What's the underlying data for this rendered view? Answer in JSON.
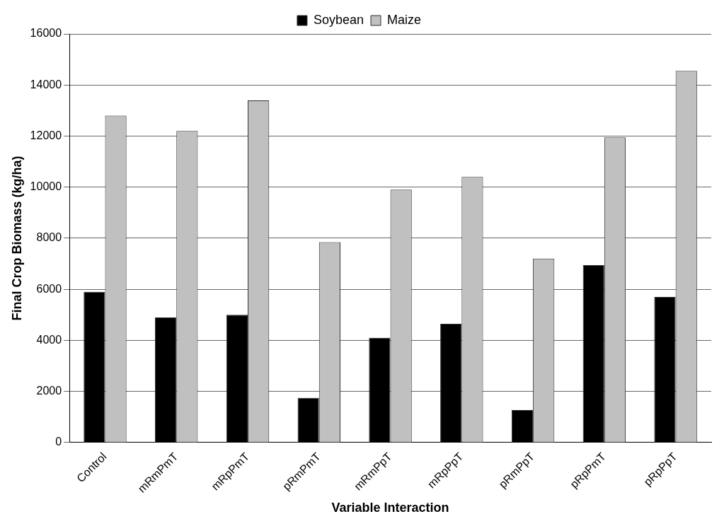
{
  "chart_data": {
    "type": "bar",
    "xlabel": "Variable Interaction",
    "ylabel": "Final Crop Biomass (kg/ha)",
    "categories": [
      "Control",
      "mRmPmT",
      "mRpPmT",
      "pRmPmT",
      "mRmPpT",
      "mRpPpT",
      "pRmPpT",
      "pRpPmT",
      "pRpPpT"
    ],
    "series": [
      {
        "name": "Soybean",
        "color": "#000000",
        "values": [
          5900,
          4900,
          5000,
          1750,
          4100,
          4650,
          1270,
          6950,
          5700
        ]
      },
      {
        "name": "Maize",
        "color": "#c0c0c0",
        "values": [
          12800,
          12200,
          13400,
          7850,
          9900,
          10400,
          7200,
          11950,
          14550
        ]
      }
    ],
    "ylim": [
      0,
      16000
    ],
    "yticks": [
      0,
      2000,
      4000,
      6000,
      8000,
      10000,
      12000,
      14000,
      16000
    ],
    "grid": "y",
    "legend": "top"
  }
}
